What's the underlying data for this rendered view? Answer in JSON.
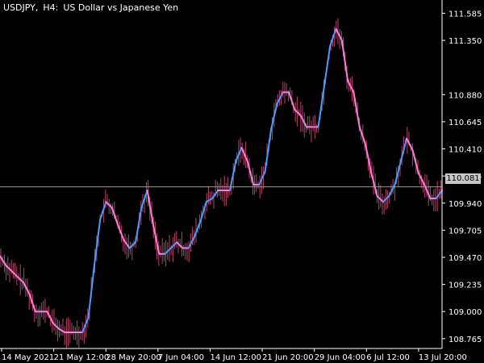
{
  "header": {
    "symbol": "USDJPY",
    "timeframe": "H4",
    "description": "US Dollar vs Japanese Yen"
  },
  "current_price": "110.081",
  "colors": {
    "background": "#000000",
    "axis": "#ffffff",
    "candle": "#b4436b",
    "indicator_down": "#ff7bd9",
    "indicator_up": "#4a9cff",
    "price_line": "#9a9a9a"
  },
  "chart_data": {
    "type": "line",
    "title": "USDJPY, H4:  US Dollar vs Japanese Yen",
    "xlabel": "",
    "ylabel": "",
    "y_ticks": [
      "111.585",
      "111.350",
      "110.880",
      "110.645",
      "110.410",
      "110.175",
      "109.940",
      "109.705",
      "109.470",
      "109.235",
      "109.000",
      "108.765"
    ],
    "x_ticks": [
      "14 May 2021",
      "21 May 12:00",
      "28 May 20:00",
      "7 Jun 04:00",
      "14 Jun 12:00",
      "21 Jun 20:00",
      "29 Jun 04:00",
      "6 Jul 12:00",
      "13 Jul 20:00"
    ],
    "ylim": [
      108.68,
      111.7
    ],
    "current_price": 110.081,
    "series": [
      {
        "values": [
          109.48,
          109.4,
          109.35,
          109.3,
          109.25,
          109.15,
          109.0,
          109.0,
          109.0,
          108.9,
          108.85,
          108.82,
          108.82,
          108.82,
          108.82,
          108.95,
          109.4,
          109.8,
          109.95,
          109.9,
          109.75,
          109.62,
          109.55,
          109.6,
          109.9,
          110.05,
          109.75,
          109.5,
          109.5,
          109.55,
          109.6,
          109.55,
          109.55,
          109.65,
          109.78,
          109.95,
          109.98,
          110.05,
          110.05,
          110.05,
          110.3,
          110.42,
          110.3,
          110.1,
          110.1,
          110.22,
          110.58,
          110.8,
          110.9,
          110.9,
          110.75,
          110.7,
          110.6,
          110.6,
          110.6,
          110.95,
          111.3,
          111.45,
          111.35,
          111.0,
          110.9,
          110.6,
          110.45,
          110.2,
          110.0,
          109.95,
          110.0,
          110.1,
          110.3,
          110.5,
          110.4,
          110.2,
          110.1,
          109.98,
          109.98,
          110.05
        ]
      }
    ]
  }
}
